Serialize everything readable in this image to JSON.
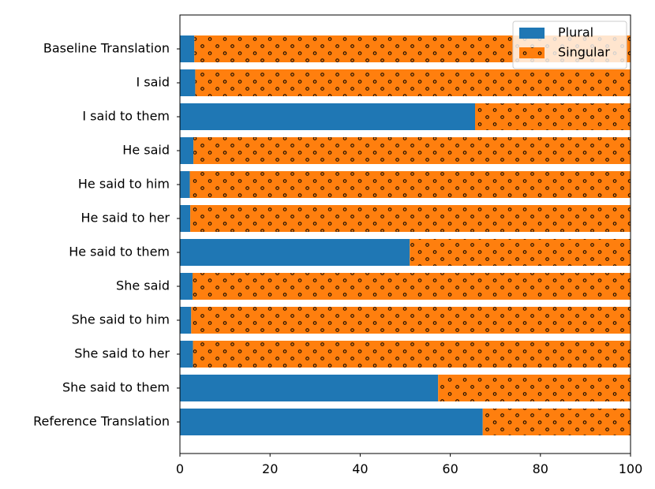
{
  "chart_data": {
    "type": "bar",
    "orientation": "horizontal",
    "stacked": true,
    "categories": [
      "Baseline Translation",
      "I said",
      "I said to them",
      "He said",
      "He said to him",
      "He said to her",
      "He said to them",
      "She said",
      "She said to him",
      "She said to her",
      "She said to them",
      "Reference Translation"
    ],
    "series": [
      {
        "name": "Plural",
        "color": "#1f77b4",
        "values": [
          3.2,
          3.4,
          65.5,
          3.0,
          2.2,
          2.3,
          51.0,
          2.8,
          2.5,
          2.9,
          57.3,
          67.2
        ]
      },
      {
        "name": "Singular",
        "color": "#ff7f0e",
        "hatch": "dots",
        "values": [
          96.8,
          96.6,
          34.5,
          97.0,
          97.8,
          97.7,
          49.0,
          97.2,
          97.5,
          97.1,
          42.7,
          32.8
        ]
      }
    ],
    "xlim": [
      0,
      100
    ],
    "xticks": [
      0,
      20,
      40,
      60,
      80,
      100
    ],
    "title": "",
    "xlabel": "",
    "ylabel": "",
    "grid": false,
    "legend_position": "top-right"
  }
}
